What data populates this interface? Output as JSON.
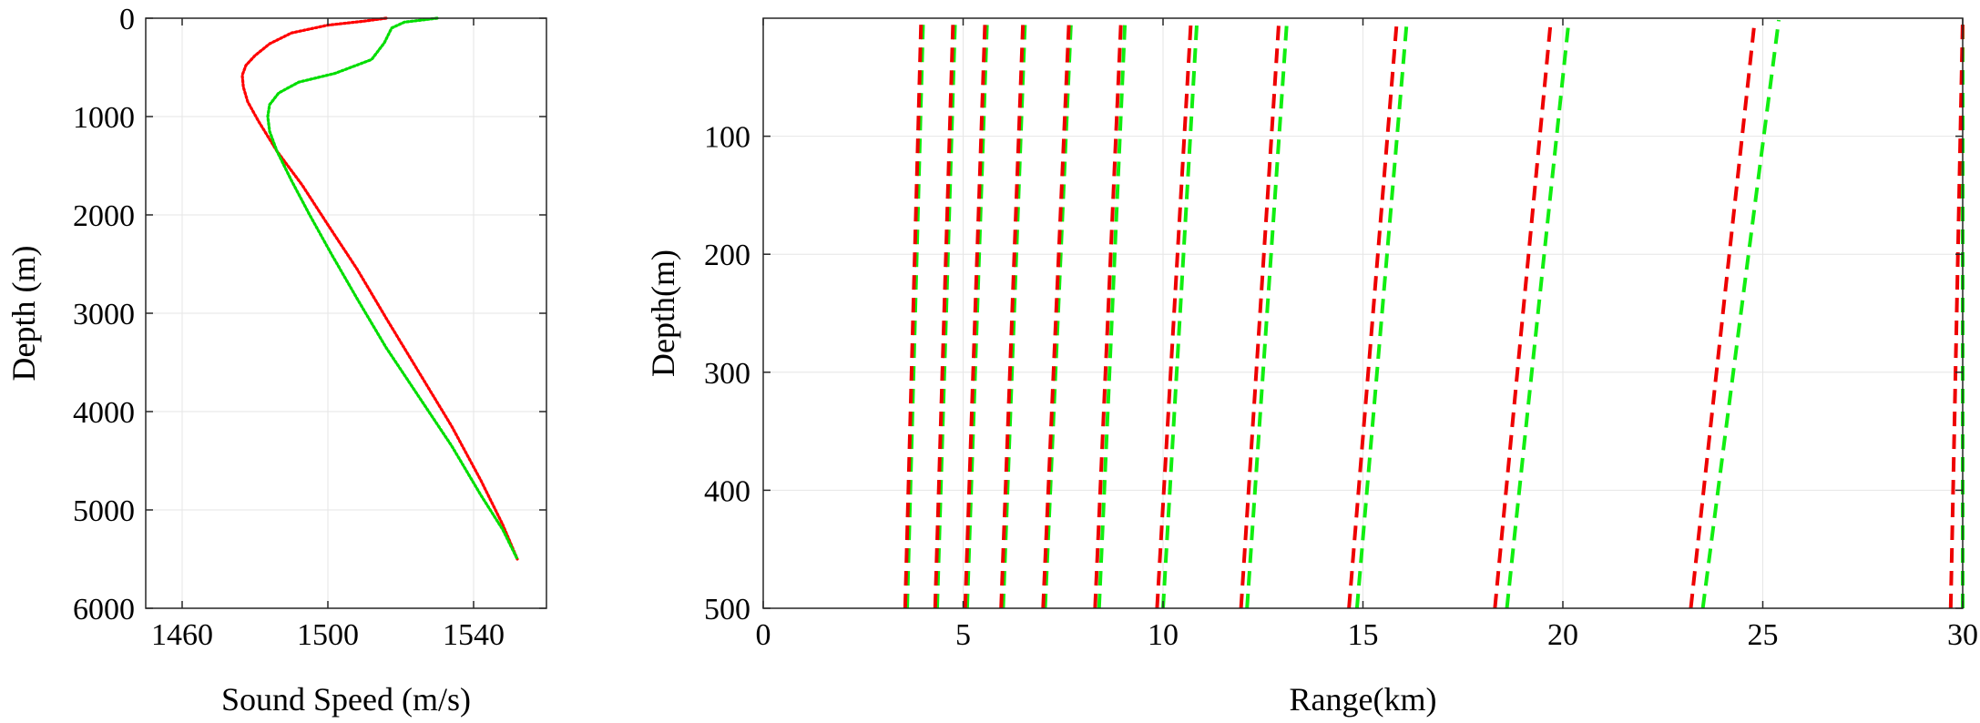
{
  "chart_data": [
    {
      "type": "line",
      "xlabel": "Sound Speed (m/s)",
      "ylabel": "Depth (m)",
      "xlim": [
        1450,
        1560
      ],
      "ylim": [
        0,
        6000
      ],
      "y_reversed": true,
      "xticks": [
        1460,
        1500,
        1540
      ],
      "yticks": [
        0,
        1000,
        2000,
        3000,
        4000,
        5000,
        6000
      ],
      "grid": true,
      "series": [
        {
          "color": "#ff0000",
          "style": "dotted",
          "x": [
            1516,
            1510,
            1500,
            1490,
            1484,
            1480,
            1477.5,
            1476.5,
            1476.8,
            1478,
            1481,
            1486,
            1493,
            1500,
            1508,
            1516,
            1525,
            1534,
            1542,
            1548,
            1552
          ],
          "y": [
            0,
            30,
            70,
            150,
            260,
            380,
            480,
            580,
            700,
            850,
            1050,
            1350,
            1700,
            2100,
            2550,
            3050,
            3600,
            4150,
            4700,
            5150,
            5500
          ]
        },
        {
          "color": "#00dd00",
          "style": "dotted",
          "x": [
            1530,
            1521,
            1517.5,
            1515.5,
            1512,
            1502,
            1492,
            1486.5,
            1484,
            1483.5,
            1484,
            1486,
            1490,
            1495,
            1501,
            1508,
            1516,
            1525,
            1534,
            1542,
            1548,
            1552
          ],
          "y": [
            0,
            40,
            100,
            250,
            420,
            560,
            650,
            760,
            880,
            1000,
            1150,
            1350,
            1650,
            2000,
            2400,
            2850,
            3350,
            3850,
            4350,
            4850,
            5200,
            5500
          ]
        }
      ]
    },
    {
      "type": "line",
      "xlabel": "Range(km)",
      "ylabel": "Depth(m)",
      "xlim": [
        0,
        30
      ],
      "ylim": [
        0,
        500
      ],
      "y_reversed": true,
      "xticks": [
        0,
        5,
        10,
        15,
        20,
        25,
        30
      ],
      "yticks": [
        100,
        200,
        300,
        400,
        500
      ],
      "grid": true,
      "red_color": "#ee0000",
      "green_color": "#11ee11",
      "rays": [
        {
          "red": [
            3.55,
            3.95
          ],
          "green": [
            3.6,
            4.0
          ]
        },
        {
          "red": [
            4.3,
            4.75
          ],
          "green": [
            4.35,
            4.8
          ]
        },
        {
          "red": [
            5.05,
            5.55
          ],
          "green": [
            5.1,
            5.6
          ]
        },
        {
          "red": [
            5.95,
            6.5
          ],
          "green": [
            6.0,
            6.55
          ]
        },
        {
          "red": [
            7.0,
            7.65
          ],
          "green": [
            7.05,
            7.7
          ]
        },
        {
          "red": [
            8.3,
            8.95
          ],
          "green": [
            8.4,
            9.05
          ]
        },
        {
          "red": [
            9.85,
            10.7
          ],
          "green": [
            10.0,
            10.85
          ]
        },
        {
          "red": [
            11.95,
            12.9
          ],
          "green": [
            12.1,
            13.1
          ]
        },
        {
          "red": [
            14.65,
            15.85
          ],
          "green": [
            14.85,
            16.1
          ]
        },
        {
          "red": [
            18.3,
            19.7
          ],
          "green": [
            18.6,
            20.15
          ]
        },
        {
          "red": [
            23.2,
            24.8
          ],
          "green": [
            23.5,
            25.4
          ]
        },
        {
          "red": [
            29.7,
            30.0
          ],
          "green": [
            30.0,
            30.0
          ]
        }
      ]
    }
  ]
}
